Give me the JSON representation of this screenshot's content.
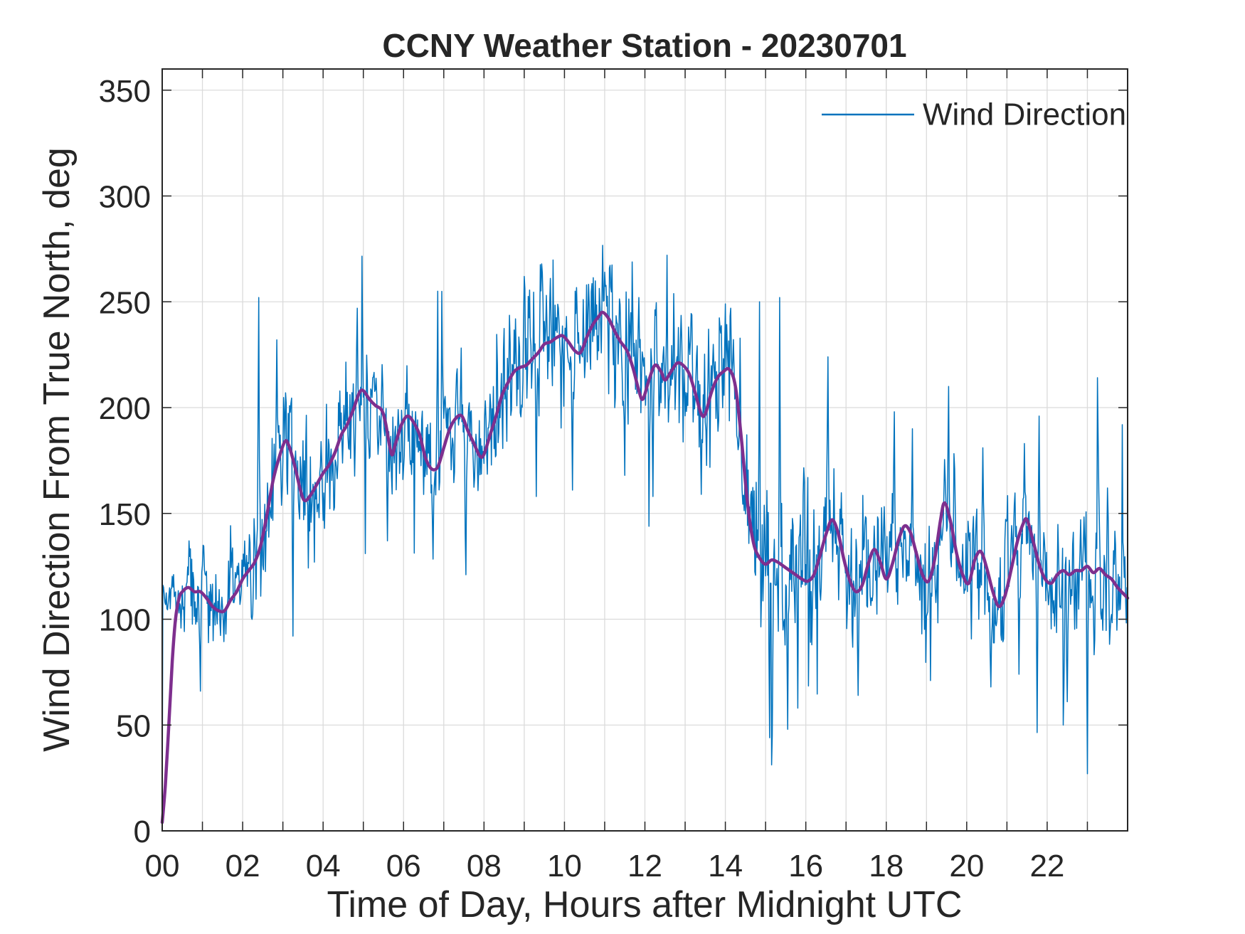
{
  "figure": {
    "background": "#ffffff",
    "axis_color": "#262626",
    "grid_color": "#dbdbdb"
  },
  "chart_data": {
    "type": "line",
    "title": "CCNY Weather Station - 20230701",
    "xlabel": "Time of Day, Hours after Midnight UTC",
    "ylabel": "Wind Direction From True North, deg",
    "xlim": [
      0,
      24
    ],
    "ylim": [
      0,
      360
    ],
    "xticks": [
      0,
      2,
      4,
      6,
      8,
      10,
      12,
      14,
      16,
      18,
      20,
      22
    ],
    "xtick_labels": [
      "00",
      "02",
      "04",
      "06",
      "08",
      "10",
      "12",
      "14",
      "16",
      "18",
      "20",
      "22"
    ],
    "xminor_tick_every": 1,
    "yticks": [
      0,
      50,
      100,
      150,
      200,
      250,
      300,
      350
    ],
    "grid": true,
    "tick_direction": "in",
    "legend": {
      "position": "top-right",
      "box": false,
      "items": [
        {
          "label": "Wind Direction",
          "color": "#0072BD"
        }
      ]
    },
    "series": [
      {
        "name": "Wind Direction",
        "role": "raw",
        "color": "#0072BD",
        "line_width": 1.5,
        "derivation": "smoothed baseline + correlated noise + spikes",
        "samples_per_hour": 60
      },
      {
        "name": "Wind Direction (smoothed)",
        "role": "smoothed",
        "color": "#7E2F8E",
        "line_width": 4.5,
        "points": [
          [
            0,
            4
          ],
          [
            0.08,
            22
          ],
          [
            0.17,
            52
          ],
          [
            0.25,
            80
          ],
          [
            0.33,
            100
          ],
          [
            0.42,
            110
          ],
          [
            0.5,
            113
          ],
          [
            0.65,
            115
          ],
          [
            0.8,
            113
          ],
          [
            0.95,
            113
          ],
          [
            1.1,
            110
          ],
          [
            1.25,
            106
          ],
          [
            1.4,
            104
          ],
          [
            1.55,
            104
          ],
          [
            1.7,
            109
          ],
          [
            1.85,
            113
          ],
          [
            2.0,
            119
          ],
          [
            2.15,
            123
          ],
          [
            2.3,
            127
          ],
          [
            2.45,
            135
          ],
          [
            2.6,
            149
          ],
          [
            2.75,
            165
          ],
          [
            2.9,
            176
          ],
          [
            3.05,
            184
          ],
          [
            3.15,
            182
          ],
          [
            3.3,
            172
          ],
          [
            3.45,
            160
          ],
          [
            3.55,
            156
          ],
          [
            3.7,
            159
          ],
          [
            3.85,
            164
          ],
          [
            4.0,
            169
          ],
          [
            4.15,
            173
          ],
          [
            4.3,
            179
          ],
          [
            4.45,
            187
          ],
          [
            4.6,
            192
          ],
          [
            4.75,
            199
          ],
          [
            4.9,
            207
          ],
          [
            5.0,
            208
          ],
          [
            5.15,
            204
          ],
          [
            5.3,
            201
          ],
          [
            5.45,
            199
          ],
          [
            5.55,
            193
          ],
          [
            5.7,
            178
          ],
          [
            5.8,
            183
          ],
          [
            5.95,
            192
          ],
          [
            6.1,
            196
          ],
          [
            6.25,
            193
          ],
          [
            6.4,
            187
          ],
          [
            6.55,
            176
          ],
          [
            6.7,
            171
          ],
          [
            6.85,
            172
          ],
          [
            7.0,
            181
          ],
          [
            7.15,
            190
          ],
          [
            7.3,
            195
          ],
          [
            7.45,
            196
          ],
          [
            7.6,
            189
          ],
          [
            7.75,
            183
          ],
          [
            7.9,
            177
          ],
          [
            8.0,
            178
          ],
          [
            8.15,
            187
          ],
          [
            8.3,
            196
          ],
          [
            8.45,
            206
          ],
          [
            8.6,
            212
          ],
          [
            8.75,
            217
          ],
          [
            8.9,
            219
          ],
          [
            9.05,
            220
          ],
          [
            9.2,
            223
          ],
          [
            9.35,
            226
          ],
          [
            9.5,
            230
          ],
          [
            9.65,
            231
          ],
          [
            9.8,
            233
          ],
          [
            9.95,
            234
          ],
          [
            10.1,
            231
          ],
          [
            10.25,
            227
          ],
          [
            10.4,
            226
          ],
          [
            10.55,
            233
          ],
          [
            10.7,
            239
          ],
          [
            10.85,
            243
          ],
          [
            10.95,
            245
          ],
          [
            11.1,
            242
          ],
          [
            11.25,
            236
          ],
          [
            11.4,
            231
          ],
          [
            11.55,
            227
          ],
          [
            11.7,
            219
          ],
          [
            11.85,
            208
          ],
          [
            11.95,
            204
          ],
          [
            12.1,
            213
          ],
          [
            12.25,
            220
          ],
          [
            12.4,
            217
          ],
          [
            12.5,
            213
          ],
          [
            12.65,
            217
          ],
          [
            12.8,
            221
          ],
          [
            12.95,
            220
          ],
          [
            13.1,
            216
          ],
          [
            13.25,
            207
          ],
          [
            13.4,
            197
          ],
          [
            13.5,
            197
          ],
          [
            13.65,
            207
          ],
          [
            13.8,
            214
          ],
          [
            13.95,
            217
          ],
          [
            14.1,
            218
          ],
          [
            14.25,
            210
          ],
          [
            14.4,
            185
          ],
          [
            14.55,
            155
          ],
          [
            14.7,
            136
          ],
          [
            14.85,
            129
          ],
          [
            15.0,
            126
          ],
          [
            15.15,
            128
          ],
          [
            15.3,
            127
          ],
          [
            15.45,
            125
          ],
          [
            15.6,
            123
          ],
          [
            15.75,
            121
          ],
          [
            15.9,
            119
          ],
          [
            16.05,
            118
          ],
          [
            16.2,
            121
          ],
          [
            16.35,
            130
          ],
          [
            16.5,
            140
          ],
          [
            16.65,
            147
          ],
          [
            16.8,
            141
          ],
          [
            16.95,
            128
          ],
          [
            17.1,
            118
          ],
          [
            17.25,
            113
          ],
          [
            17.4,
            116
          ],
          [
            17.55,
            126
          ],
          [
            17.7,
            133
          ],
          [
            17.85,
            127
          ],
          [
            18.0,
            119
          ],
          [
            18.15,
            126
          ],
          [
            18.3,
            137
          ],
          [
            18.45,
            144
          ],
          [
            18.6,
            141
          ],
          [
            18.75,
            131
          ],
          [
            18.9,
            121
          ],
          [
            19.05,
            118
          ],
          [
            19.2,
            128
          ],
          [
            19.35,
            147
          ],
          [
            19.45,
            155
          ],
          [
            19.6,
            146
          ],
          [
            19.75,
            131
          ],
          [
            19.9,
            121
          ],
          [
            20.05,
            117
          ],
          [
            20.2,
            128
          ],
          [
            20.35,
            132
          ],
          [
            20.5,
            124
          ],
          [
            20.65,
            113
          ],
          [
            20.8,
            106
          ],
          [
            20.95,
            111
          ],
          [
            21.1,
            123
          ],
          [
            21.25,
            136
          ],
          [
            21.4,
            145
          ],
          [
            21.5,
            147
          ],
          [
            21.65,
            137
          ],
          [
            21.8,
            126
          ],
          [
            21.95,
            119
          ],
          [
            22.1,
            117
          ],
          [
            22.25,
            121
          ],
          [
            22.4,
            123
          ],
          [
            22.55,
            121
          ],
          [
            22.7,
            123
          ],
          [
            22.85,
            123
          ],
          [
            23.0,
            125
          ],
          [
            23.15,
            122
          ],
          [
            23.3,
            124
          ],
          [
            23.45,
            121
          ],
          [
            23.6,
            119
          ],
          [
            23.75,
            115
          ],
          [
            23.9,
            112
          ],
          [
            24,
            110
          ]
        ]
      }
    ],
    "noise": {
      "seed": 42,
      "ar": 0.4,
      "initial_flat_until": 0.35,
      "initial_flat_value": 112,
      "segments": [
        {
          "to": 0.35,
          "std": 5,
          "spike_prob": 0,
          "spike_scale": 0,
          "down_frac": 0.5
        },
        {
          "to": 2.2,
          "std": 11,
          "spike_prob": 0.006,
          "spike_scale": 34,
          "down_frac": 0.55
        },
        {
          "to": 3.7,
          "std": 15,
          "spike_prob": 0.012,
          "spike_scale": 45,
          "down_frac": 0.6
        },
        {
          "to": 8.0,
          "std": 14,
          "spike_prob": 0.01,
          "spike_scale": 40,
          "down_frac": 0.5
        },
        {
          "to": 14.3,
          "std": 18,
          "spike_prob": 0.014,
          "spike_scale": 45,
          "down_frac": 0.45
        },
        {
          "to": 16.3,
          "std": 19,
          "spike_prob": 0.02,
          "spike_scale": 60,
          "down_frac": 0.75
        },
        {
          "to": 24,
          "std": 14,
          "spike_prob": 0.016,
          "spike_scale": 45,
          "down_frac": 0.65
        }
      ]
    },
    "extreme_spikes": [
      [
        0.95,
        66
      ],
      [
        2.4,
        252
      ],
      [
        2.85,
        232
      ],
      [
        3.25,
        92
      ],
      [
        4.85,
        247
      ],
      [
        5.05,
        131
      ],
      [
        5.6,
        137
      ],
      [
        6.85,
        255
      ],
      [
        7.55,
        121
      ],
      [
        9.0,
        262
      ],
      [
        9.3,
        158
      ],
      [
        9.55,
        253
      ],
      [
        10.2,
        161
      ],
      [
        10.55,
        258
      ],
      [
        11.0,
        264
      ],
      [
        11.5,
        168
      ],
      [
        11.85,
        252
      ],
      [
        12.2,
        158
      ],
      [
        12.55,
        272
      ],
      [
        13.4,
        159
      ],
      [
        14.0,
        249
      ],
      [
        14.85,
        250
      ],
      [
        15.1,
        44
      ],
      [
        15.35,
        252
      ],
      [
        15.55,
        48
      ],
      [
        15.8,
        58
      ],
      [
        16.55,
        224
      ],
      [
        17.3,
        64
      ],
      [
        18.2,
        198
      ],
      [
        18.65,
        190
      ],
      [
        19.1,
        71
      ],
      [
        19.55,
        210
      ],
      [
        20.4,
        181
      ],
      [
        20.6,
        68
      ],
      [
        21.3,
        74
      ],
      [
        21.8,
        196
      ],
      [
        22.5,
        61
      ],
      [
        23.0,
        27
      ],
      [
        23.5,
        162
      ]
    ]
  }
}
